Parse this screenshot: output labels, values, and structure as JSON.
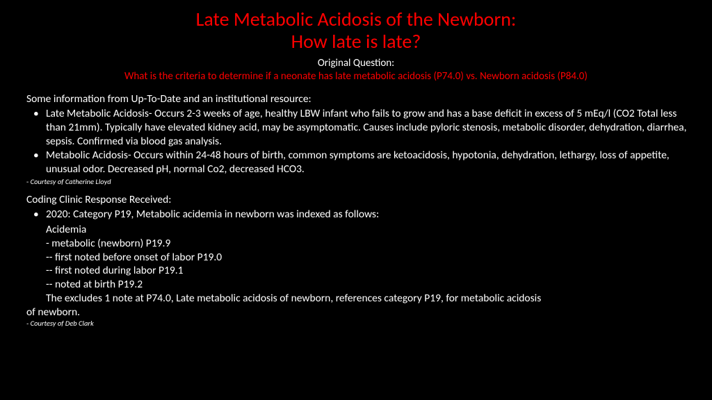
{
  "title_line1": "Late Metabolic Acidosis of the Newborn:",
  "title_line2": "How late is late?",
  "original_label": "Original Question:",
  "original_question": "What is the criteria to determine if a neonate has late metabolic acidosis (P74.0) vs. Newborn acidosis (P84.0)",
  "section1_heading": "Some information from Up-To-Date and an institutional resource:",
  "section1_bullets": [
    "Late Metabolic Acidosis- Occurs 2-3 weeks of age, healthy LBW infant who fails to grow and has a base deficit in excess of 5 mEq/l (CO2 Total less than 21mm). Typically have elevated kidney acid, may be asymptomatic. Causes include pyloric stenosis, metabolic disorder, dehydration, diarrhea, sepsis. Confirmed via blood gas analysis.",
    "Metabolic Acidosis- Occurs within 24-48 hours of birth, common symptoms are ketoacidosis, hypotonia, dehydration, lethargy, loss of appetite, unusual odor. Decreased pH, normal Co2, decreased HCO3."
  ],
  "attribution1": "Courtesy of Catherine Lloyd",
  "section2_heading": "Coding Clinic Response Received:",
  "section2_bullet": "2020:  Category P19, Metabolic acidemia in newborn was indexed as follows:",
  "section2_lines": [
    "Acidemia",
    "- metabolic (newborn) P19.9",
    "-- first noted before onset of labor P19.0",
    "-- first noted during labor P19.1",
    "-- noted at birth P19.2",
    "The excludes 1 note at P74.0, Late metabolic acidosis of newborn, references category P19, for metabolic acidosis"
  ],
  "section2_outdent": "of newborn.",
  "attribution2": "- Courtesy of Deb Clark",
  "colors": {
    "background": "#000000",
    "title": "#ff0000",
    "body_text": "#ffffff",
    "question": "#ff0000"
  }
}
